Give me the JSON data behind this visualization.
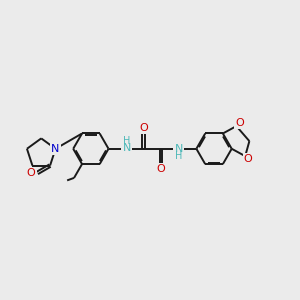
{
  "background_color": "#ebebeb",
  "bond_color": "#1a1a1a",
  "nitrogen_color": "#0000cc",
  "oxygen_color": "#cc0000",
  "nh_color": "#4db8b8",
  "line_width": 1.4,
  "figsize": [
    3.0,
    3.0
  ],
  "dpi": 100,
  "xlim": [
    0,
    12
  ],
  "ylim": [
    0,
    10
  ]
}
